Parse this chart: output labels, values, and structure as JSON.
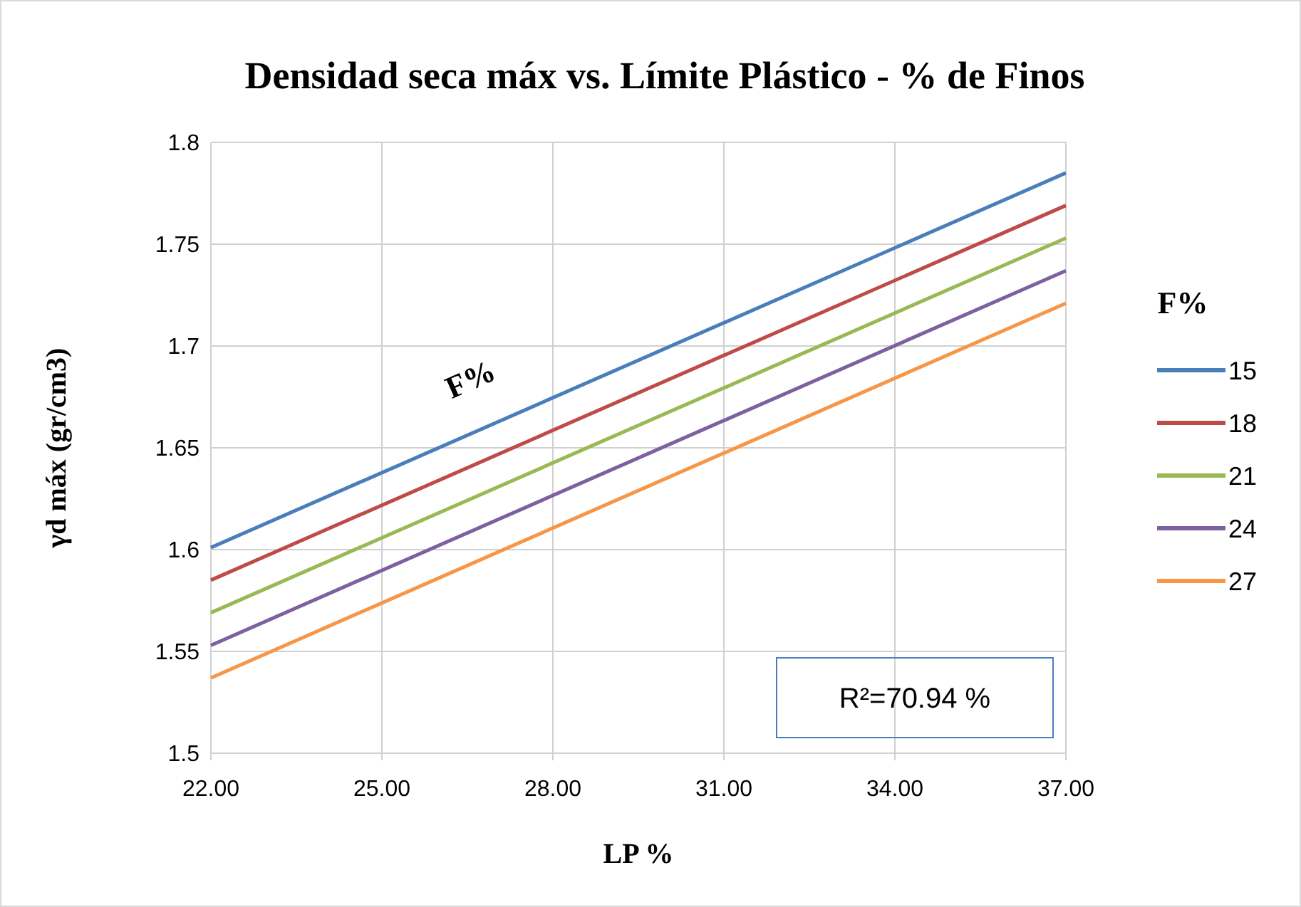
{
  "chart_data": {
    "type": "line",
    "title": "Densidad seca máx vs. Límite Plástico - % de Finos",
    "xlabel": "LP %",
    "ylabel": "γd máx (gr/cm3)",
    "legend_title": "F%",
    "legend": "right",
    "grid": true,
    "marker": "none",
    "line_style": "solid",
    "xlim": [
      22,
      37
    ],
    "xticks": [
      {
        "value": 22,
        "label": "22.00"
      },
      {
        "value": 25,
        "label": "25.00"
      },
      {
        "value": 28,
        "label": "28.00"
      },
      {
        "value": 31,
        "label": "31.00"
      },
      {
        "value": 34,
        "label": "34.00"
      },
      {
        "value": 37,
        "label": "37.00"
      }
    ],
    "ylim": [
      1.5,
      1.8
    ],
    "yticks": [
      1.5,
      1.55,
      1.6,
      1.65,
      1.7,
      1.75,
      1.8
    ],
    "x": [
      22,
      37
    ],
    "series": [
      {
        "name": "15",
        "color": "#4a7ebb",
        "values": [
          1.601,
          1.785
        ]
      },
      {
        "name": "18",
        "color": "#be4b48",
        "values": [
          1.585,
          1.769
        ]
      },
      {
        "name": "21",
        "color": "#98b954",
        "values": [
          1.569,
          1.753
        ]
      },
      {
        "name": "24",
        "color": "#7d60a0",
        "values": [
          1.553,
          1.737
        ]
      },
      {
        "name": "27",
        "color": "#f79646",
        "values": [
          1.537,
          1.721
        ]
      }
    ],
    "annotations": [
      "F%",
      "R²=70.94 %"
    ]
  }
}
